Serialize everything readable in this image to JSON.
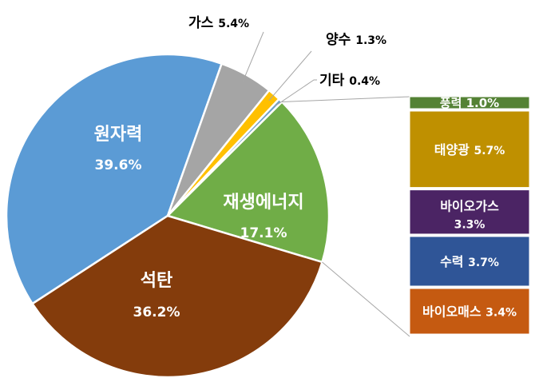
{
  "chart_data": {
    "type": "pie",
    "slices": [
      {
        "label": "원자력",
        "value": 39.6,
        "value_label": "39.6%",
        "color": "#5b9bd5"
      },
      {
        "label": "가스",
        "value": 5.4,
        "value_label": "5.4%",
        "color": "#a5a5a5"
      },
      {
        "label": "양수",
        "value": 1.3,
        "value_label": "1.3%",
        "color": "#ffc000"
      },
      {
        "label": "기타",
        "value": 0.4,
        "value_label": "0.4%",
        "color": "#6fa0c8"
      },
      {
        "label": "재생에너지",
        "value": 17.1,
        "value_label": "17.1%",
        "color": "#70ad47"
      },
      {
        "label": "석탄",
        "value": 36.2,
        "value_label": "36.2%",
        "color": "#843c0c"
      }
    ],
    "breakdown": {
      "of": "재생에너지",
      "items": [
        {
          "label": "풍력",
          "value": 1.0,
          "value_label": "1.0%",
          "color": "#548235"
        },
        {
          "label": "태양광",
          "value": 5.7,
          "value_label": "5.7%",
          "color": "#bf9000"
        },
        {
          "label": "바이오가스",
          "value": 3.3,
          "value_label": "3.3%",
          "color": "#4b2464"
        },
        {
          "label": "수력",
          "value": 3.7,
          "value_label": "3.7%",
          "color": "#2f5597"
        },
        {
          "label": "바이오매스",
          "value": 3.4,
          "value_label": "3.4%",
          "color": "#c55a11"
        }
      ]
    }
  }
}
